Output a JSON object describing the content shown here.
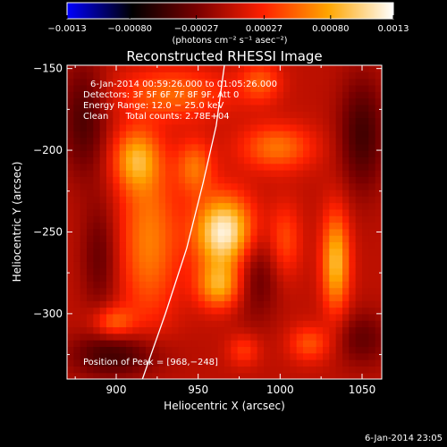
{
  "chart_data": {
    "type": "heatmap",
    "title": "Reconstructed RHESSI Image",
    "xlabel": "Heliocentric X (arcsec)",
    "ylabel": "Heliocentric Y (arcsec)",
    "xlim": [
      870,
      1062
    ],
    "ylim": [
      -340,
      -148
    ],
    "x_ticks": [
      900,
      950,
      1000,
      1050
    ],
    "x_tick_labels": [
      "900",
      "950",
      "1000",
      "1050"
    ],
    "y_ticks": [
      -150,
      -200,
      -250,
      -300
    ],
    "y_tick_labels": [
      "−150",
      "−200",
      "−250",
      "−300"
    ],
    "colorbar": {
      "min": -0.0013,
      "max": 0.0013,
      "ticks": [
        -0.0013,
        -0.0008,
        -0.00027,
        0.00027,
        0.0008,
        0.0013
      ],
      "tick_labels": [
        "−0.0013",
        "−0.00080",
        "−0.00027",
        "0.00027",
        "0.00080",
        "0.0013"
      ],
      "label": "(photons cm⁻² s⁻¹ asec⁻²)",
      "colormap": [
        "#0000ff",
        "#000000",
        "#7a0000",
        "#ff2000",
        "#ffa500",
        "#ffffff"
      ]
    },
    "info_lines": [
      "6-Jan-2014 00:59:26.000 to 01:05:26.000",
      "Detectors: 3F 5F 6F 7F 8F 9F, Att 0",
      "Energy Range: 12.0 − 25.0 keV",
      "Clean      Total counts: 2.78E+04"
    ],
    "peak_label": "Position of Peak = [968,−248]",
    "peak": {
      "x": 968,
      "y": -248
    },
    "sources": [
      {
        "x": 966,
        "y": -250,
        "sx": 13,
        "sy": 16,
        "amp": 0.00125
      },
      {
        "x": 963,
        "y": -283,
        "sx": 10,
        "sy": 10,
        "amp": 0.00075
      },
      {
        "x": 920,
        "y": -255,
        "sx": 13,
        "sy": 36,
        "amp": 0.00062
      },
      {
        "x": 912,
        "y": -205,
        "sx": 10,
        "sy": 13,
        "amp": 0.00072
      },
      {
        "x": 935,
        "y": -165,
        "sx": 24,
        "sy": 11,
        "amp": 0.00052
      },
      {
        "x": 948,
        "y": -210,
        "sx": 8,
        "sy": 12,
        "amp": 0.00055
      },
      {
        "x": 1034,
        "y": -268,
        "sx": 6,
        "sy": 22,
        "amp": 0.0009
      },
      {
        "x": 998,
        "y": -198,
        "sx": 16,
        "sy": 10,
        "amp": 0.00058
      },
      {
        "x": 988,
        "y": -158,
        "sx": 9,
        "sy": 9,
        "amp": 0.00045
      },
      {
        "x": 1003,
        "y": -255,
        "sx": 7,
        "sy": 16,
        "amp": 0.00042
      },
      {
        "x": 898,
        "y": -305,
        "sx": 9,
        "sy": 7,
        "amp": 0.00052
      },
      {
        "x": 1018,
        "y": -318,
        "sx": 9,
        "sy": 8,
        "amp": 0.00045
      },
      {
        "x": 978,
        "y": -322,
        "sx": 7,
        "sy": 7,
        "amp": 0.00035
      },
      {
        "x": 1050,
        "y": -190,
        "sx": 10,
        "sy": 25,
        "amp": -0.0005
      },
      {
        "x": 880,
        "y": -180,
        "sx": 10,
        "sy": 25,
        "amp": -0.00045
      },
      {
        "x": 900,
        "y": -325,
        "sx": 20,
        "sy": 10,
        "amp": -0.0005
      },
      {
        "x": 985,
        "y": -275,
        "sx": 10,
        "sy": 20,
        "amp": -0.0004
      },
      {
        "x": 890,
        "y": -265,
        "sx": 8,
        "sy": 25,
        "amp": -0.00035
      },
      {
        "x": 1050,
        "y": -315,
        "sx": 12,
        "sy": 12,
        "amp": -0.00035
      }
    ],
    "limb_curve": [
      [
        916,
        -340
      ],
      [
        930,
        -300
      ],
      [
        943,
        -260
      ],
      [
        953,
        -220
      ],
      [
        961,
        -185
      ],
      [
        966,
        -148
      ]
    ],
    "grid": false,
    "legend": "none"
  },
  "footer": {
    "timestamp": "6-Jan-2014 23:05"
  }
}
